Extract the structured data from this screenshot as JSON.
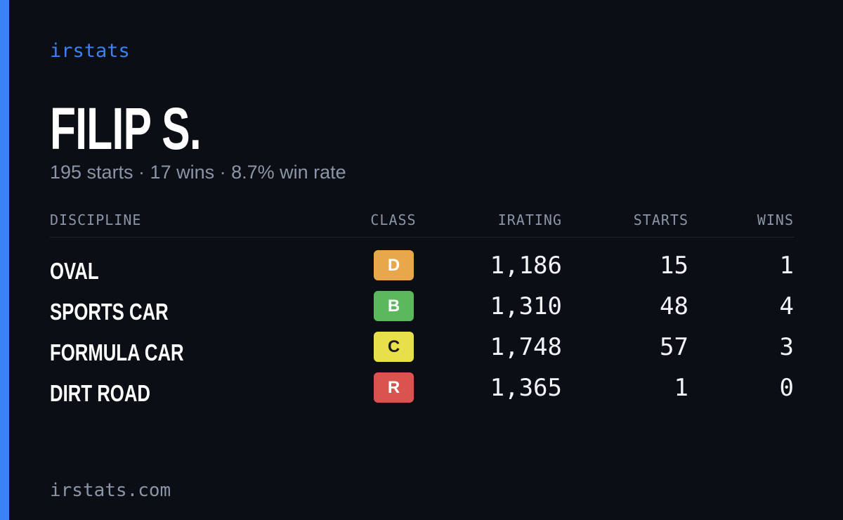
{
  "brand": "irstats",
  "driver": {
    "name": "FILIP S.",
    "summary": "195 starts · 17 wins · 8.7% win rate"
  },
  "table": {
    "headers": [
      "DISCIPLINE",
      "CLASS",
      "IRATING",
      "STARTS",
      "WINS"
    ],
    "rows": [
      [
        "OVAL",
        "D",
        "1,186",
        "15",
        "1"
      ],
      [
        "SPORTS CAR",
        "B",
        "1,310",
        "48",
        "4"
      ],
      [
        "FORMULA CAR",
        "C",
        "1,748",
        "57",
        "3"
      ],
      [
        "DIRT ROAD",
        "R",
        "1,365",
        "1",
        "0"
      ]
    ]
  },
  "footer": "irstats.com"
}
